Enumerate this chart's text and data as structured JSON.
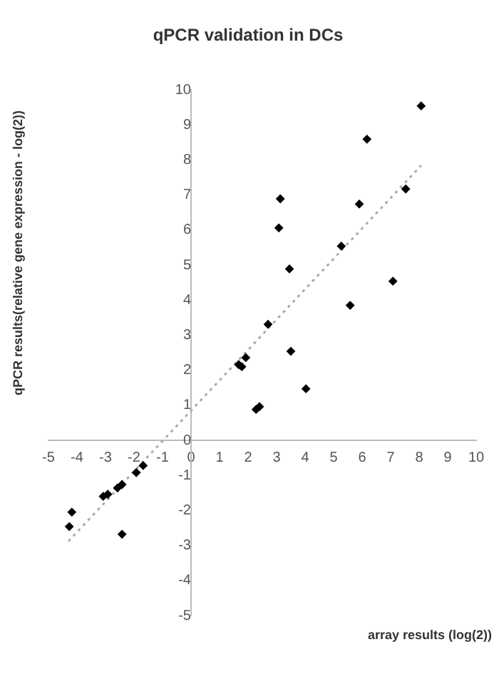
{
  "chart_data": {
    "type": "scatter",
    "title": "qPCR validation in DCs",
    "xlabel": "array results (log(2))",
    "ylabel": "qPCR results(relative gene expression - log(2))",
    "xlim": [
      -5,
      10
    ],
    "ylim": [
      -5,
      10
    ],
    "xticks": [
      -5,
      -4,
      -3,
      -2,
      -1,
      0,
      1,
      2,
      3,
      4,
      5,
      6,
      7,
      8,
      9,
      10
    ],
    "yticks": [
      -5,
      -4,
      -3,
      -2,
      -1,
      0,
      1,
      2,
      3,
      4,
      5,
      6,
      7,
      8,
      9,
      10
    ],
    "grid": false,
    "legend": false,
    "marker": "diamond",
    "series": [
      {
        "type": "scatter",
        "color": "#000000",
        "x": [
          8.07,
          6.17,
          7.53,
          5.9,
          3.13,
          3.08,
          3.45,
          5.27,
          7.08,
          5.58,
          2.7,
          3.5,
          4.03,
          1.67,
          1.78,
          1.92,
          2.28,
          2.4,
          -1.68,
          -1.92,
          -2.42,
          -2.58,
          -2.92,
          -3.08,
          -4.18,
          -4.27,
          -2.42
        ],
        "values": [
          9.54,
          8.59,
          7.17,
          6.74,
          6.89,
          6.06,
          4.89,
          5.54,
          4.54,
          3.85,
          3.31,
          2.54,
          1.47,
          2.16,
          2.1,
          2.36,
          0.88,
          0.96,
          -0.72,
          -0.92,
          -1.26,
          -1.36,
          -1.54,
          -1.6,
          -2.05,
          -2.46,
          -2.68
        ]
      },
      {
        "type": "line",
        "color": "#aaaaaa",
        "line_style": "dotted",
        "marker": "none",
        "x": [
          -4.3,
          8.07
        ],
        "values": [
          -2.88,
          7.84
        ]
      }
    ]
  }
}
